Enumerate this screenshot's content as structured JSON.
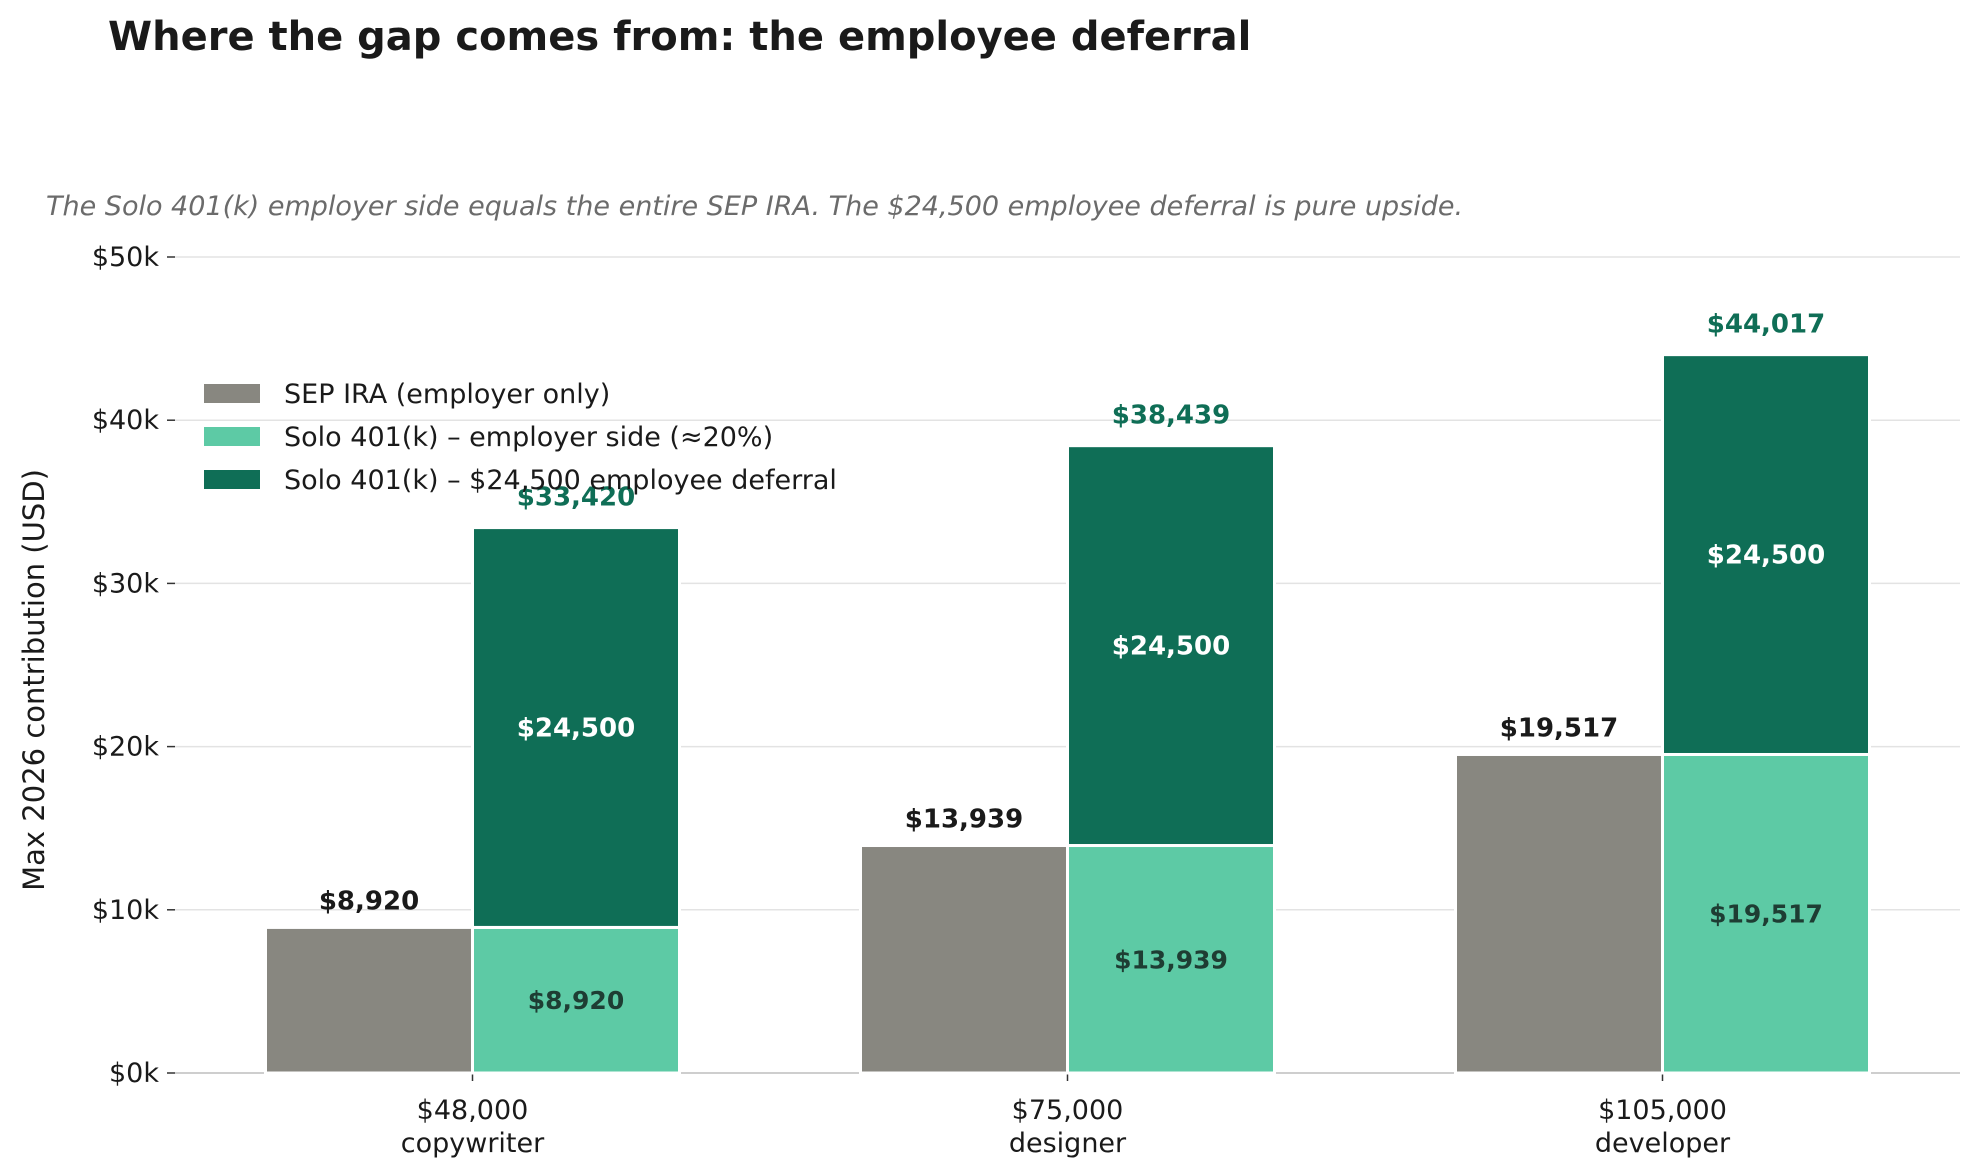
{
  "chart_data": {
    "type": "bar",
    "title": "Where the gap comes from: the employee deferral",
    "subtitle": "The Solo 401(k) employer side equals the entire SEP IRA. The $24,500 employee deferral is pure upside.",
    "ylabel": "Max 2026 contribution (USD)",
    "xlabel": "",
    "ylim": [
      0,
      50000
    ],
    "yticks": [
      {
        "value": 0,
        "label": "$0k"
      },
      {
        "value": 10000,
        "label": "$10k"
      },
      {
        "value": 20000,
        "label": "$20k"
      },
      {
        "value": 30000,
        "label": "$30k"
      },
      {
        "value": 40000,
        "label": "$40k"
      },
      {
        "value": 50000,
        "label": "$50k"
      }
    ],
    "grid": true,
    "legend_position": "upper-left",
    "categories": [
      {
        "income": "$48,000",
        "role": "copywriter"
      },
      {
        "income": "$75,000",
        "role": "designer"
      },
      {
        "income": "$105,000",
        "role": "developer"
      }
    ],
    "series": [
      {
        "name": "SEP IRA (employer only)",
        "color": "#888780",
        "stack": "sep",
        "values": [
          8920,
          13939,
          19517
        ],
        "labels": [
          "$8,920",
          "$13,939",
          "$19,517"
        ]
      },
      {
        "name": "Solo 401(k) – employer side (≈20%)",
        "color": "#5dcaa5",
        "stack": "solo",
        "values": [
          8920,
          13939,
          19517
        ],
        "labels": [
          "$8,920",
          "$13,939",
          "$19,517"
        ]
      },
      {
        "name": "Solo 401(k) – $24,500 employee deferral",
        "color": "#0f6e56",
        "stack": "solo",
        "values": [
          24500,
          24500,
          24500
        ],
        "labels": [
          "$24,500",
          "$24,500",
          "$24,500"
        ]
      }
    ],
    "solo_totals": {
      "values": [
        33420,
        38439,
        44017
      ],
      "labels": [
        "$33,420",
        "$38,439",
        "$44,017"
      ],
      "color": "#0f6e56"
    }
  }
}
